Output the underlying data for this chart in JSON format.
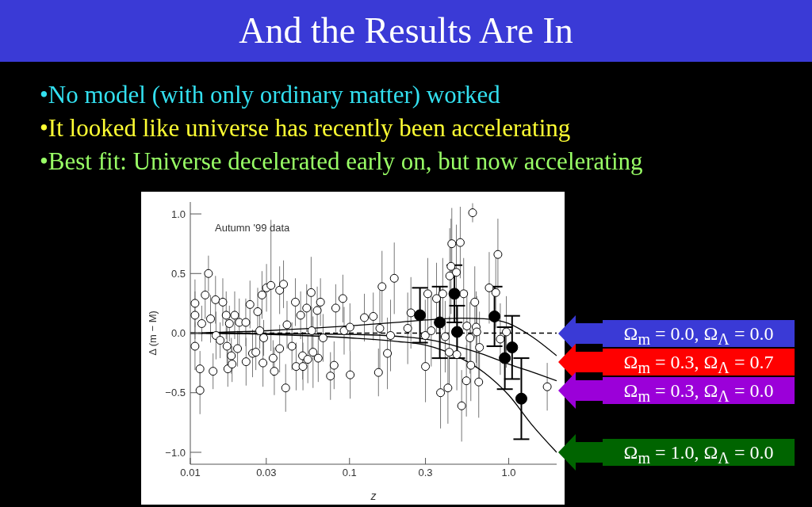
{
  "chart_data": {
    "type": "scatter",
    "title": "And the Results Are In",
    "annotations": [
      "•No model (with only ordinary matter) worked",
      "•It looked like universe has recently been accelerating",
      "•Best fit:  Universe decelerated early on, but now accelerating",
      "Autumn '99 data"
    ],
    "xlabel": "z",
    "ylabel": "Δ (m − M)",
    "log": "x",
    "xlim": [
      0.01,
      2
    ],
    "xticks": [
      0.01,
      0.03,
      0.1,
      0.3,
      {
        "value": 1,
        "label": "1.0"
      }
    ],
    "ylim": [
      -1.1,
      1.1
    ],
    "yticks": [
      {
        "value": -1,
        "label": "−1.0"
      },
      {
        "value": -0.5,
        "label": "−0.5"
      },
      {
        "value": 0,
        "label": "0.0"
      },
      0.5,
      {
        "value": 1,
        "label": "1.0"
      }
    ],
    "series": [
      {
        "color": "#ffffff",
        "marker": "circle",
        "x": [
          0.0107,
          0.0107,
          0.0107,
          0.0115,
          0.0115,
          0.0118,
          0.0124,
          0.013,
          0.0134,
          0.0139,
          0.0144,
          0.0145,
          0.0154,
          0.016,
          0.0168,
          0.017,
          0.0172,
          0.0176,
          0.0181,
          0.0183,
          0.019,
          0.0198,
          0.0203,
          0.0223,
          0.0224,
          0.0237,
          0.0246,
          0.0258,
          0.0265,
          0.0273,
          0.0282,
          0.0286,
          0.0289,
          0.0301,
          0.0321,
          0.0331,
          0.0337,
          0.0364,
          0.0364,
          0.0385,
          0.0397,
          0.0405,
          0.0435,
          0.0457,
          0.0462,
          0.0493,
          0.0507,
          0.051,
          0.0538,
          0.0547,
          0.0574,
          0.0579,
          0.059,
          0.0627,
          0.0636,
          0.0657,
          0.0682,
          0.0759,
          0.08,
          0.0819,
          0.0908,
          0.0925,
          0.1006,
          0.101,
          0.124,
          0.141,
          0.155,
          0.152,
          0.16,
          0.173,
          0.181,
          0.191,
          0.232,
          0.243,
          0.299,
          0.3,
          0.31,
          0.326,
          0.352,
          0.373,
          0.385,
          0.399,
          0.415,
          0.426,
          0.434,
          0.439,
          0.423,
          0.469,
          0.472,
          0.496,
          0.506,
          0.521,
          0.546,
          0.542,
          0.571,
          0.578,
          0.593,
          0.612,
          0.624,
          0.63,
          0.648,
          0.655,
          0.754,
          0.855,
          0.829,
          0.885,
          0.966,
          1.745
        ],
        "values": [
          0.25,
          0.15,
          -0.11,
          -0.3,
          -0.48,
          0.08,
          0.32,
          0.5,
          0.12,
          -0.32,
          0.28,
          -0.02,
          -0.06,
          0.26,
          0.15,
          -0.11,
          -0.3,
          0.08,
          -0.19,
          -0.26,
          0.15,
          -0.13,
          0.09,
          0.09,
          -0.24,
          0.24,
          -0.17,
          -0.16,
          0.18,
          0.02,
          0.32,
          -0.25,
          -0.04,
          0.38,
          0.4,
          -0.21,
          -0.32,
          0.36,
          -0.13,
          0.41,
          -0.46,
          0.07,
          -0.11,
          0.26,
          -0.28,
          0.15,
          -0.19,
          -0.28,
          0.21,
          -0.22,
          0.34,
          0.02,
          -0.16,
          0.19,
          -0.21,
          0.26,
          -0.04,
          -0.36,
          -0.27,
          0.21,
          0.29,
          0.02,
          0.05,
          -0.35,
          0.13,
          0.14,
          0.04,
          -0.33,
          0.39,
          -0.17,
          -0.02,
          0.46,
          0.04,
          0.17,
          -0.02,
          -0.28,
          0.33,
          0.02,
          0.29,
          -0.5,
          0.33,
          -0.03,
          -0.46,
          0.48,
          0.56,
          0.75,
          -0.16,
          0.51,
          -0.18,
          0.76,
          -0.61,
          0.33,
          0.06,
          -0.4,
          -0.04,
          -0.27,
          1.01,
          0.26,
          0.05,
          0.01,
          -0.41,
          -0.12,
          0.38,
          0.66,
          0.34,
          -0.05,
          0.01,
          -0.45
        ],
        "errors": [
          0.2,
          0.2,
          0.2,
          0.15,
          0.2,
          0.15,
          0.2,
          0.15,
          0.2,
          0.15,
          0.2,
          0.2,
          0.15,
          0.2,
          0.2,
          0.2,
          0.15,
          0.15,
          0.15,
          0.15,
          0.2,
          0.15,
          0.2,
          0.2,
          0.2,
          0.2,
          0.2,
          0.15,
          0.2,
          0.15,
          0.2,
          0.2,
          0.15,
          0.2,
          0.55,
          0.15,
          0.2,
          0.2,
          0.2,
          0.2,
          0.2,
          0.2,
          0.2,
          0.2,
          0.2,
          0.2,
          0.2,
          0.2,
          0.2,
          0.2,
          0.3,
          0.2,
          0.3,
          0.2,
          0.2,
          0.2,
          0.2,
          0.2,
          0.2,
          0.2,
          0.2,
          0.2,
          0.2,
          0.2,
          0.2,
          0.2,
          0.35,
          0.2,
          0.3,
          0.3,
          0.3,
          0.3,
          0.3,
          0.3,
          0.3,
          0.3,
          0.3,
          0.3,
          0.3,
          0.3,
          0.3,
          0.3,
          0.3,
          0.4,
          0.4,
          0.3,
          0.3,
          0.4,
          0.3,
          0.3,
          0.3,
          0.3,
          0.3,
          0.3,
          0.3,
          0.3,
          0.08,
          0.3,
          0.3,
          0.3,
          0.3,
          0.3,
          0.3,
          0.3,
          0.3,
          0.3,
          0.3,
          0.2
        ]
      },
      {
        "color": "#000000",
        "marker": "circle",
        "x": [
          0.277,
          0.369,
          0.456,
          0.474,
          0.814,
          0.945,
          1.05,
          1.2
        ],
        "values": [
          0.15,
          0.09,
          0.33,
          0.01,
          0.14,
          -0.21,
          -0.12,
          -0.55
        ],
        "errors": [
          0.23,
          0.3,
          0.24,
          0.22,
          0.25,
          0.26,
          0.265,
          0.34
        ]
      },
      {
        "type": "line",
        "name": "Ω$_{m}$ = 0.0, Ω$_{Λ}$ = 0.0",
        "color": "#000000",
        "marker": "none",
        "line_style": "dashed",
        "x": [
          0.01,
          2
        ],
        "values": [
          0,
          0
        ]
      },
      {
        "type": "line",
        "name": "Ω$_{m}$ = 0.3, Ω$_{Λ}$ = 0.7",
        "color": "#000000",
        "marker": "none",
        "line_style": "solid",
        "x": [
          0.01,
          0.03,
          0.1,
          0.2,
          0.3,
          0.5,
          0.7,
          1.0,
          1.4,
          2.0
        ],
        "values": [
          0,
          0.02,
          0.06,
          0.09,
          0.11,
          0.125,
          0.12,
          0.08,
          -0.03,
          -0.19
        ]
      },
      {
        "type": "line",
        "name": "Ω$_{m}$ = 0.3, Ω$_{Λ}$ = 0.0",
        "color": "#000000",
        "marker": "none",
        "line_style": "solid",
        "x": [
          0.01,
          0.1,
          0.3,
          0.5,
          0.7,
          1.0,
          1.5,
          2.0
        ],
        "values": [
          0,
          -0.01,
          -0.05,
          -0.12,
          -0.18,
          -0.26,
          -0.34,
          -0.4
        ]
      },
      {
        "type": "line",
        "name": "Ω$_{m}$ = 1.0, Ω$_{Λ}$ = 0.0",
        "color": "#000000",
        "marker": "none",
        "line_style": "solid",
        "x": [
          0.01,
          0.03,
          0.1,
          0.2,
          0.3,
          0.5,
          0.7,
          1.0,
          1.4,
          2.0
        ],
        "values": [
          0,
          -0.01,
          -0.04,
          -0.07,
          -0.1,
          -0.21,
          -0.33,
          -0.52,
          -0.77,
          -1.0
        ]
      }
    ]
  }
}
